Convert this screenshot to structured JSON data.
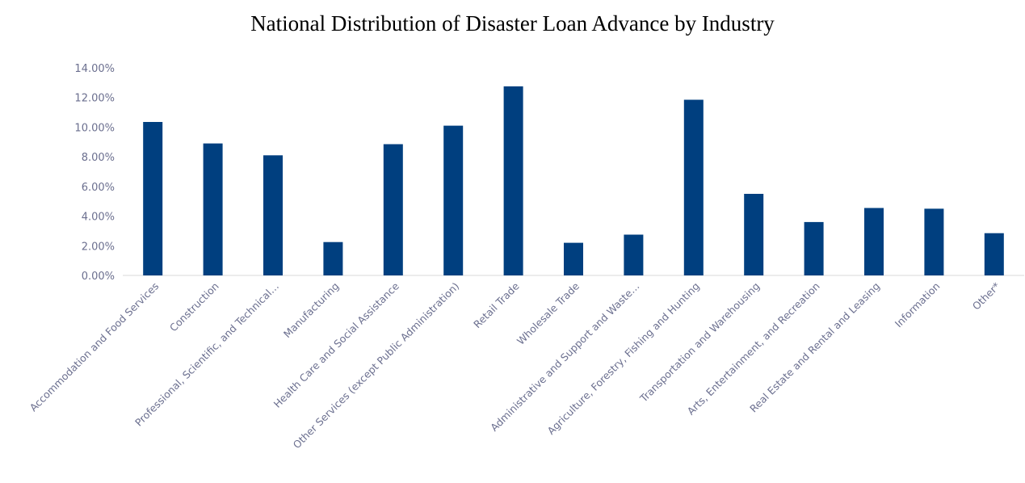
{
  "chart_data": {
    "type": "bar",
    "title": "National Distribution of Disaster Loan Advance by Industry",
    "xlabel": "",
    "ylabel": "",
    "ylim": [
      0,
      14
    ],
    "yticks": [
      0,
      2,
      4,
      6,
      8,
      10,
      12,
      14
    ],
    "ytick_labels": [
      "0.00%",
      "2.00%",
      "4.00%",
      "6.00%",
      "8.00%",
      "10.00%",
      "12.00%",
      "14.00%"
    ],
    "grid": false,
    "legend": "none",
    "bar_color": "#003f7f",
    "categories": [
      "Accommodation and Food Services",
      "Construction",
      "Professional, Scientific, and Technical…",
      "Manufacturing",
      "Health Care and Social Assistance",
      "Other Services (except Public Administration)",
      "Retail Trade",
      "Wholesale Trade",
      "Administrative and Support and Waste…",
      "Agriculture, Forestry, Fishing and Hunting",
      "Transportation and Warehousing",
      "Arts, Entertainment, and Recreation",
      "Real Estate and Rental and Leasing",
      "Information",
      "Other*"
    ],
    "values": [
      10.35,
      8.9,
      8.1,
      2.25,
      8.85,
      10.1,
      12.75,
      2.2,
      2.75,
      11.85,
      5.5,
      3.6,
      4.55,
      4.5,
      2.85
    ]
  }
}
